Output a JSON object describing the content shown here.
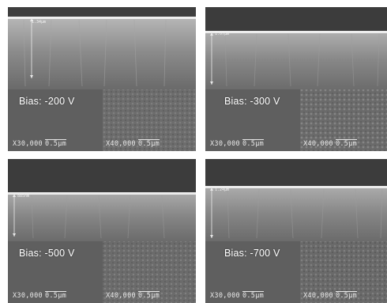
{
  "panels": [
    {
      "id": "a",
      "bias_label": "Bias: -200 V",
      "thickness_label": "1.34μm",
      "scale_left": "X30,000",
      "scale_left_bar": "0.5μm",
      "scale_right": "X40,000",
      "scale_right_bar": "0.5μm"
    },
    {
      "id": "b",
      "bias_label": "Bias: -300 V",
      "thickness_label": "1.07μm",
      "scale_left": "X30,000",
      "scale_left_bar": "0.5μm",
      "scale_right": "X40,000",
      "scale_right_bar": "0.5μm"
    },
    {
      "id": "c",
      "bias_label": "Bias: -500 V",
      "thickness_label": "885nm",
      "scale_left": "X30,000",
      "scale_left_bar": "0.5μm",
      "scale_right": "X40,000",
      "scale_right_bar": "0.5μm"
    },
    {
      "id": "d",
      "bias_label": "Bias: -700 V",
      "thickness_label": "1.24μm",
      "scale_left": "X30,000",
      "scale_left_bar": "0.5μm",
      "scale_right": "X40,000",
      "scale_right_bar": "0.5μm"
    }
  ]
}
